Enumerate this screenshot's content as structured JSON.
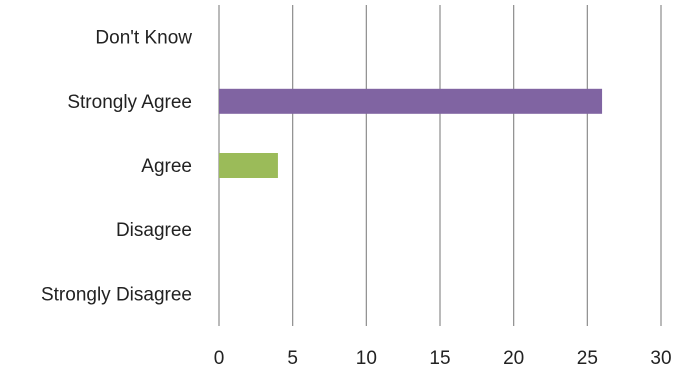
{
  "chart_data": {
    "type": "bar",
    "orientation": "horizontal",
    "title": "",
    "xlabel": "",
    "ylabel": "",
    "categories": [
      "Don't Know",
      "Strongly Agree",
      "Agree",
      "Disagree",
      "Strongly Disagree"
    ],
    "values": [
      0,
      26,
      4,
      0,
      0
    ],
    "bar_colors": [
      "#4f81bd",
      "#8064a2",
      "#9bbb59",
      "#c0504d",
      "#4bacc6"
    ],
    "xlim": [
      0,
      30
    ],
    "xticks": [
      0,
      5,
      10,
      15,
      20,
      25,
      30
    ],
    "grid": true,
    "legend": "none"
  }
}
